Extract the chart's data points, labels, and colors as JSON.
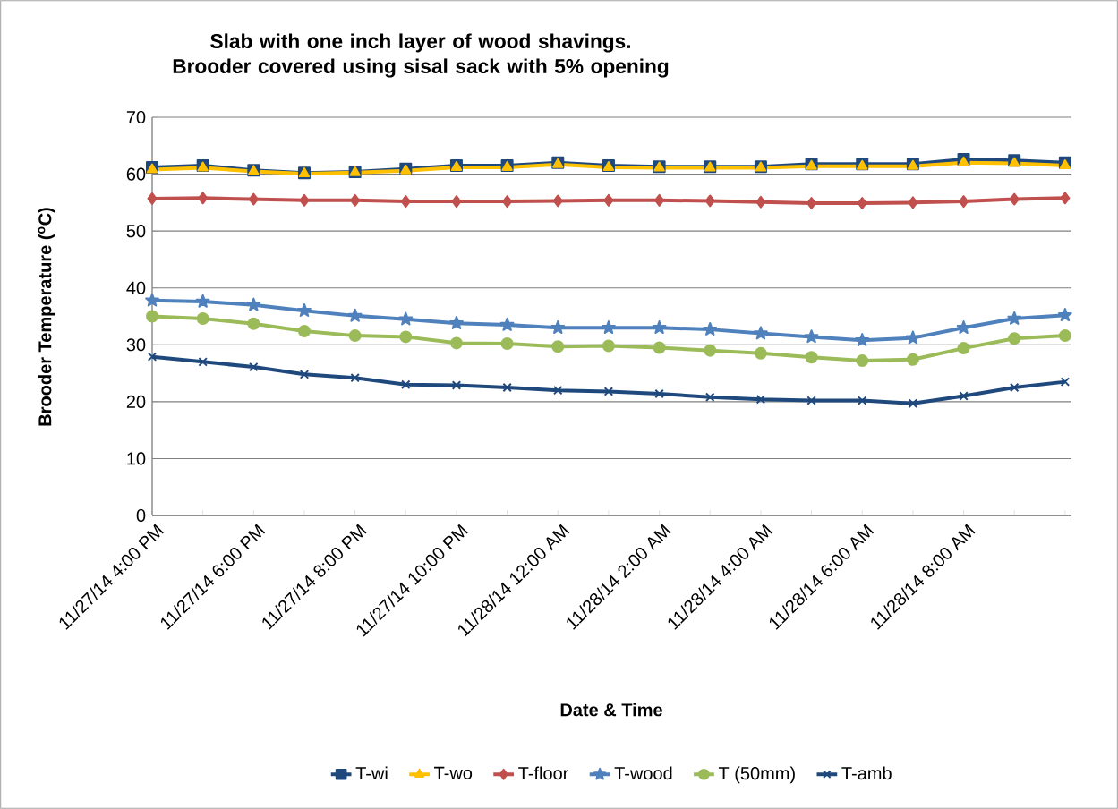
{
  "chart_data": {
    "type": "line",
    "title": "Slab with one inch layer of wood shavings. Brooder covered using sisal sack with 5% opening",
    "xlabel": "Date & Time",
    "ylabel": "Brooder Temperature ($^{o}$C)",
    "categories": [
      "11/27/14 4:00 PM",
      null,
      "11/27/14 6:00 PM",
      null,
      "11/27/14 8:00 PM",
      null,
      "11/27/14 10:00 PM",
      null,
      "11/28/14 12:00 AM",
      null,
      "11/28/14 2:00 AM",
      null,
      "11/28/14 4:00 AM",
      null,
      "11/28/14 6:00 AM",
      null,
      "11/28/14 8:00 AM",
      null,
      null
    ],
    "series": [
      {
        "name": "T-wi",
        "color": "#1f497d",
        "marker": "square",
        "values": [
          61.2,
          61.5,
          60.7,
          60.2,
          60.4,
          60.9,
          61.5,
          61.5,
          62.0,
          61.5,
          61.3,
          61.3,
          61.3,
          61.8,
          61.8,
          61.8,
          62.6,
          62.4,
          62.0
        ]
      },
      {
        "name": "T-wo",
        "color": "#ffc000",
        "marker": "triangle",
        "values": [
          60.8,
          61.1,
          60.5,
          60.1,
          60.3,
          60.6,
          61.2,
          61.2,
          61.7,
          61.2,
          61.1,
          61.1,
          61.1,
          61.4,
          61.4,
          61.4,
          62.0,
          61.9,
          61.5
        ]
      },
      {
        "name": "T-floor",
        "color": "#c0504d",
        "marker": "diamond",
        "values": [
          55.7,
          55.8,
          55.6,
          55.4,
          55.4,
          55.2,
          55.2,
          55.2,
          55.3,
          55.4,
          55.4,
          55.3,
          55.1,
          54.9,
          54.9,
          55.0,
          55.2,
          55.6,
          55.8
        ]
      },
      {
        "name": "T-wood",
        "color": "#4f81bd",
        "marker": "star",
        "values": [
          37.8,
          37.6,
          37.0,
          36.0,
          35.1,
          34.5,
          33.8,
          33.5,
          33.0,
          33.0,
          33.0,
          32.7,
          32.0,
          31.4,
          30.8,
          31.2,
          33.0,
          34.6,
          35.2
        ]
      },
      {
        "name": "T (50mm)",
        "color": "#9bbb59",
        "marker": "circle",
        "values": [
          35.0,
          34.6,
          33.7,
          32.4,
          31.6,
          31.4,
          30.3,
          30.2,
          29.7,
          29.8,
          29.5,
          29.0,
          28.5,
          27.8,
          27.2,
          27.4,
          29.4,
          31.1,
          31.6
        ]
      },
      {
        "name": "T-amb",
        "color": "#1f497d",
        "marker": "cross",
        "values": [
          27.9,
          27.0,
          26.1,
          24.8,
          24.2,
          23.0,
          22.9,
          22.5,
          22.0,
          21.8,
          21.4,
          20.8,
          20.4,
          20.2,
          20.2,
          19.7,
          21.0,
          22.5,
          23.5
        ]
      }
    ],
    "ylim": [
      0,
      70
    ],
    "yticks": [
      0,
      10,
      20,
      30,
      40,
      50,
      60,
      70
    ],
    "grid": "y",
    "legend": "bottom",
    "line_style": "solid"
  }
}
